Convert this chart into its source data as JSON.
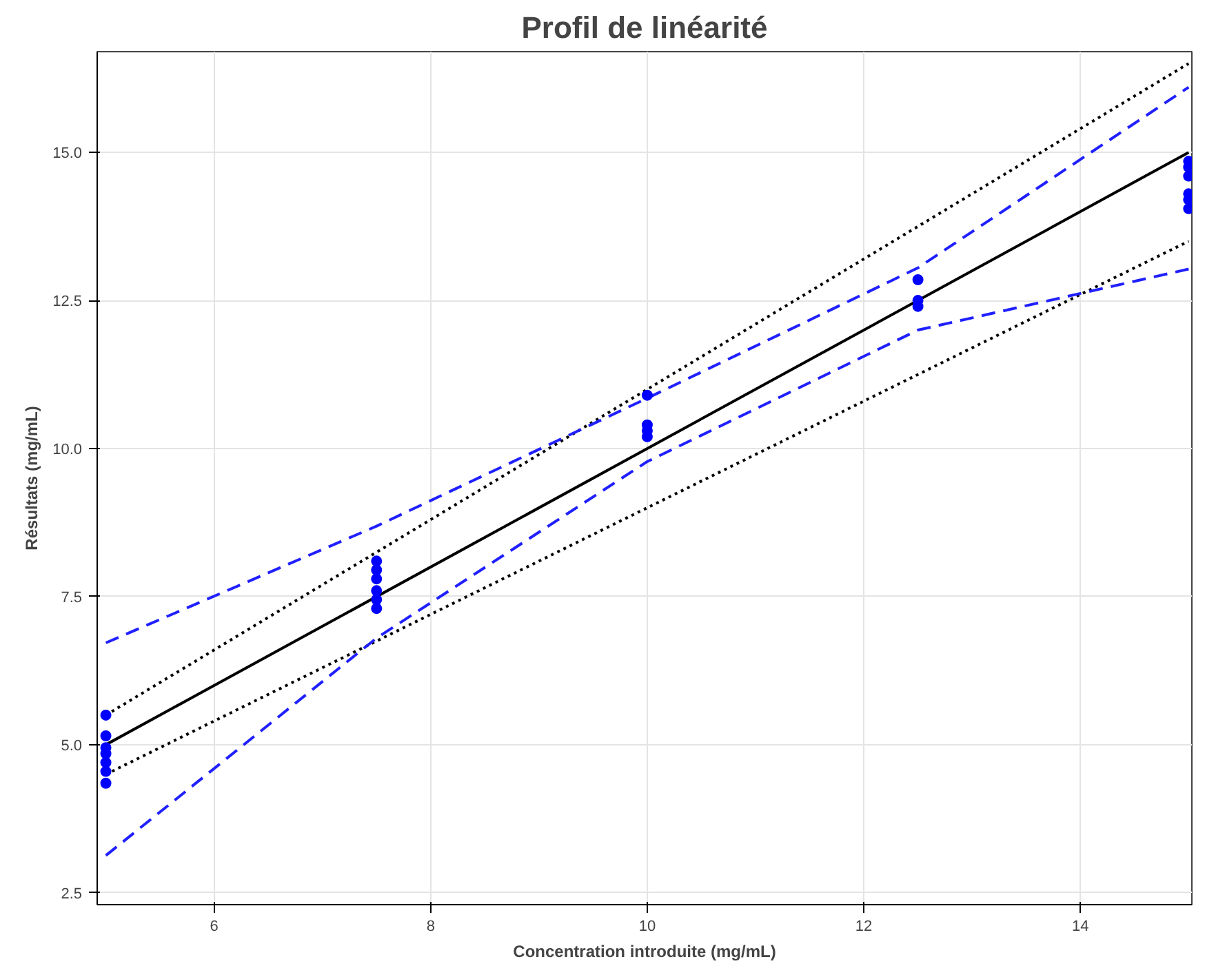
{
  "chart_data": {
    "type": "scatter",
    "title": "Profil de linéarité",
    "xlabel": "Concentration introduite (mg/mL)",
    "ylabel": "Résultats (mg/mL)",
    "xlim": [
      4.92,
      15.03
    ],
    "ylim": [
      2.3,
      16.7
    ],
    "xticks": [
      6,
      8,
      10,
      12,
      14
    ],
    "yticks": [
      {
        "value": 2.5,
        "label": "2.5"
      },
      {
        "value": 5,
        "label": "5.0"
      },
      {
        "value": 7.5,
        "label": "7.5"
      },
      {
        "value": 10,
        "label": "10.0"
      },
      {
        "value": 12.5,
        "label": "12.5"
      },
      {
        "value": 15,
        "label": "15.0"
      }
    ],
    "grid": true,
    "marker": "circle",
    "series": [
      {
        "type": "line",
        "color": "#000000",
        "line_style": "solid",
        "marker": "none",
        "x": [
          5,
          15
        ],
        "values": [
          5,
          15
        ]
      },
      {
        "type": "line",
        "color": "#000000",
        "line_style": "dotted",
        "marker": "none",
        "x": [
          5,
          15
        ],
        "values": [
          5.5,
          16.5
        ]
      },
      {
        "type": "line",
        "color": "#000000",
        "line_style": "dotted",
        "marker": "none",
        "x": [
          5,
          15
        ],
        "values": [
          4.5,
          13.5
        ]
      },
      {
        "type": "line",
        "color": "#2020ff",
        "line_style": "dashed",
        "marker": "none",
        "x": [
          5,
          7.5,
          10,
          12.5,
          15
        ],
        "values": [
          6.72,
          8.69,
          10.85,
          13.05,
          16.1
        ]
      },
      {
        "type": "line",
        "color": "#2020ff",
        "line_style": "dashed",
        "marker": "none",
        "x": [
          5,
          7.5,
          10,
          12.5,
          15
        ],
        "values": [
          3.13,
          6.8,
          9.78,
          12.0,
          13.03
        ]
      },
      {
        "color": "#0000ff",
        "x": [
          5,
          5,
          5,
          5,
          5,
          5,
          5,
          7.5,
          7.5,
          7.5,
          7.5,
          7.5,
          7.5,
          10,
          10,
          10,
          10,
          12.5,
          12.5,
          12.5,
          15,
          15,
          15,
          15,
          15,
          15
        ],
        "values": [
          5.5,
          5.15,
          4.95,
          4.85,
          4.7,
          4.55,
          4.35,
          8.1,
          7.95,
          7.8,
          7.6,
          7.45,
          7.3,
          10.9,
          10.4,
          10.3,
          10.2,
          12.85,
          12.5,
          12.4,
          14.85,
          14.75,
          14.6,
          14.3,
          14.2,
          14.05
        ]
      }
    ]
  }
}
